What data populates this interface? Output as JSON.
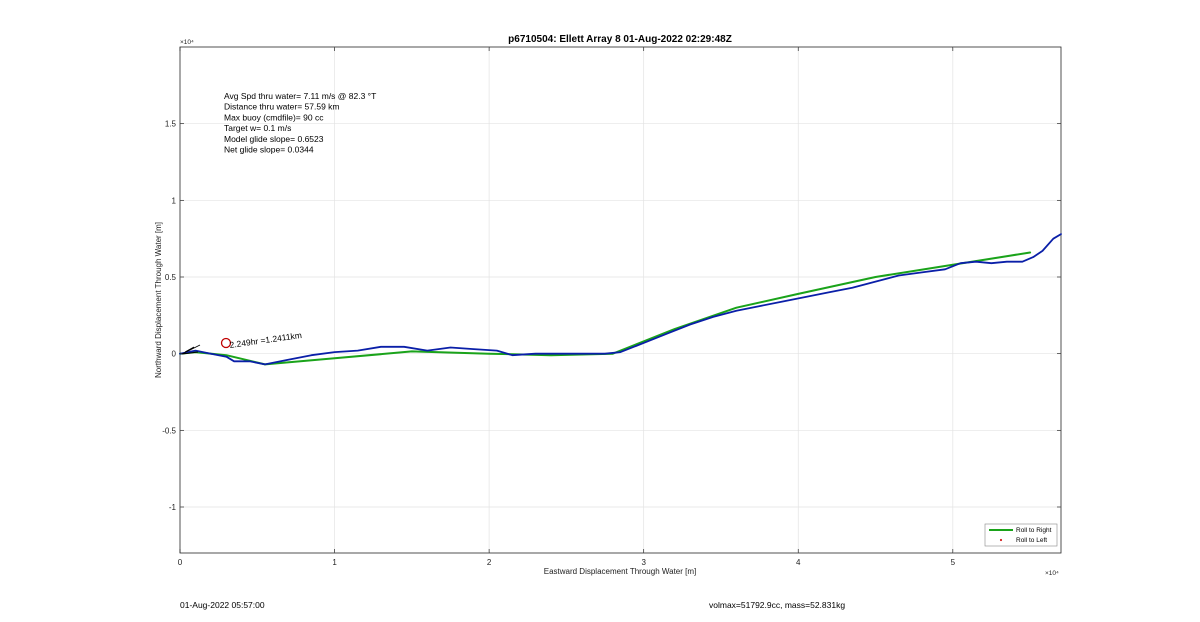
{
  "chart_data": {
    "type": "line",
    "title": "p6710504: Ellett Array 8 01-Aug-2022 02:29:48Z",
    "xlabel": "Eastward Displacement Through Water [m]",
    "ylabel": "Northward Displacement Through Water [m]",
    "x_exponent_label": "×10⁴",
    "y_exponent_label": "×10⁴",
    "xlim": [
      0,
      5.7
    ],
    "ylim": [
      -1.3,
      2.0
    ],
    "x_ticks": [
      "0",
      "1",
      "2",
      "3",
      "4",
      "5"
    ],
    "y_ticks": [
      "-1",
      "-0.5",
      "0",
      "0.5",
      "1",
      "1.5"
    ],
    "grid": true,
    "legend_position": "bottom-right",
    "legend": [
      "Roll to Right",
      "Roll to Left"
    ],
    "stats": [
      "Avg Spd thru water=  7.11 m/s @  82.3 °T",
      "Distance thru water= 57.59 km",
      "Max buoy (cmdfile)= 90 cc",
      "Target w= 0.1 m/s",
      "Model glide slope= 0.6523",
      "Net glide slope= 0.0344"
    ],
    "annotation": "2.249hr =1.2411km",
    "series": [
      {
        "name": "Roll to Right",
        "color": "#1aa31a",
        "x": [
          0,
          0.1,
          0.3,
          0.55,
          1.0,
          1.5,
          2.0,
          2.4,
          2.8,
          3.2,
          3.6,
          4.0,
          4.5,
          5.0,
          5.5
        ],
        "y": [
          0,
          0.01,
          -0.01,
          -0.07,
          -0.03,
          0.015,
          0,
          -0.01,
          0,
          0.16,
          0.3,
          0.39,
          0.5,
          0.58,
          0.66
        ]
      },
      {
        "color": "#0a1fa8",
        "x": [
          0,
          0.1,
          0.2,
          0.3,
          0.35,
          0.45,
          0.55,
          0.7,
          0.85,
          1.0,
          1.15,
          1.3,
          1.45,
          1.6,
          1.75,
          1.9,
          2.05,
          2.15,
          2.3,
          2.45,
          2.6,
          2.75,
          2.85,
          3.0,
          3.15,
          3.3,
          3.45,
          3.6,
          3.75,
          3.9,
          4.05,
          4.2,
          4.35,
          4.5,
          4.65,
          4.8,
          4.95,
          5.05,
          5.15,
          5.25,
          5.35,
          5.45,
          5.52,
          5.58,
          5.65,
          5.7
        ],
        "y": [
          0,
          0.02,
          0.0,
          -0.02,
          -0.05,
          -0.05,
          -0.07,
          -0.04,
          -0.01,
          0.01,
          0.02,
          0.045,
          0.045,
          0.02,
          0.04,
          0.03,
          0.02,
          -0.01,
          0.0,
          0.0,
          0.0,
          0.0,
          0.01,
          0.07,
          0.13,
          0.19,
          0.24,
          0.28,
          0.31,
          0.34,
          0.37,
          0.4,
          0.43,
          0.47,
          0.51,
          0.53,
          0.55,
          0.59,
          0.6,
          0.59,
          0.6,
          0.6,
          0.63,
          0.67,
          0.75,
          0.78
        ]
      },
      {
        "name": "Roll to Left",
        "color": "#d42020",
        "x": [],
        "y": []
      }
    ]
  },
  "footer": {
    "left": "01-Aug-2022 05:57:00",
    "right": "volmax=51792.9cc, mass=52.831kg"
  }
}
